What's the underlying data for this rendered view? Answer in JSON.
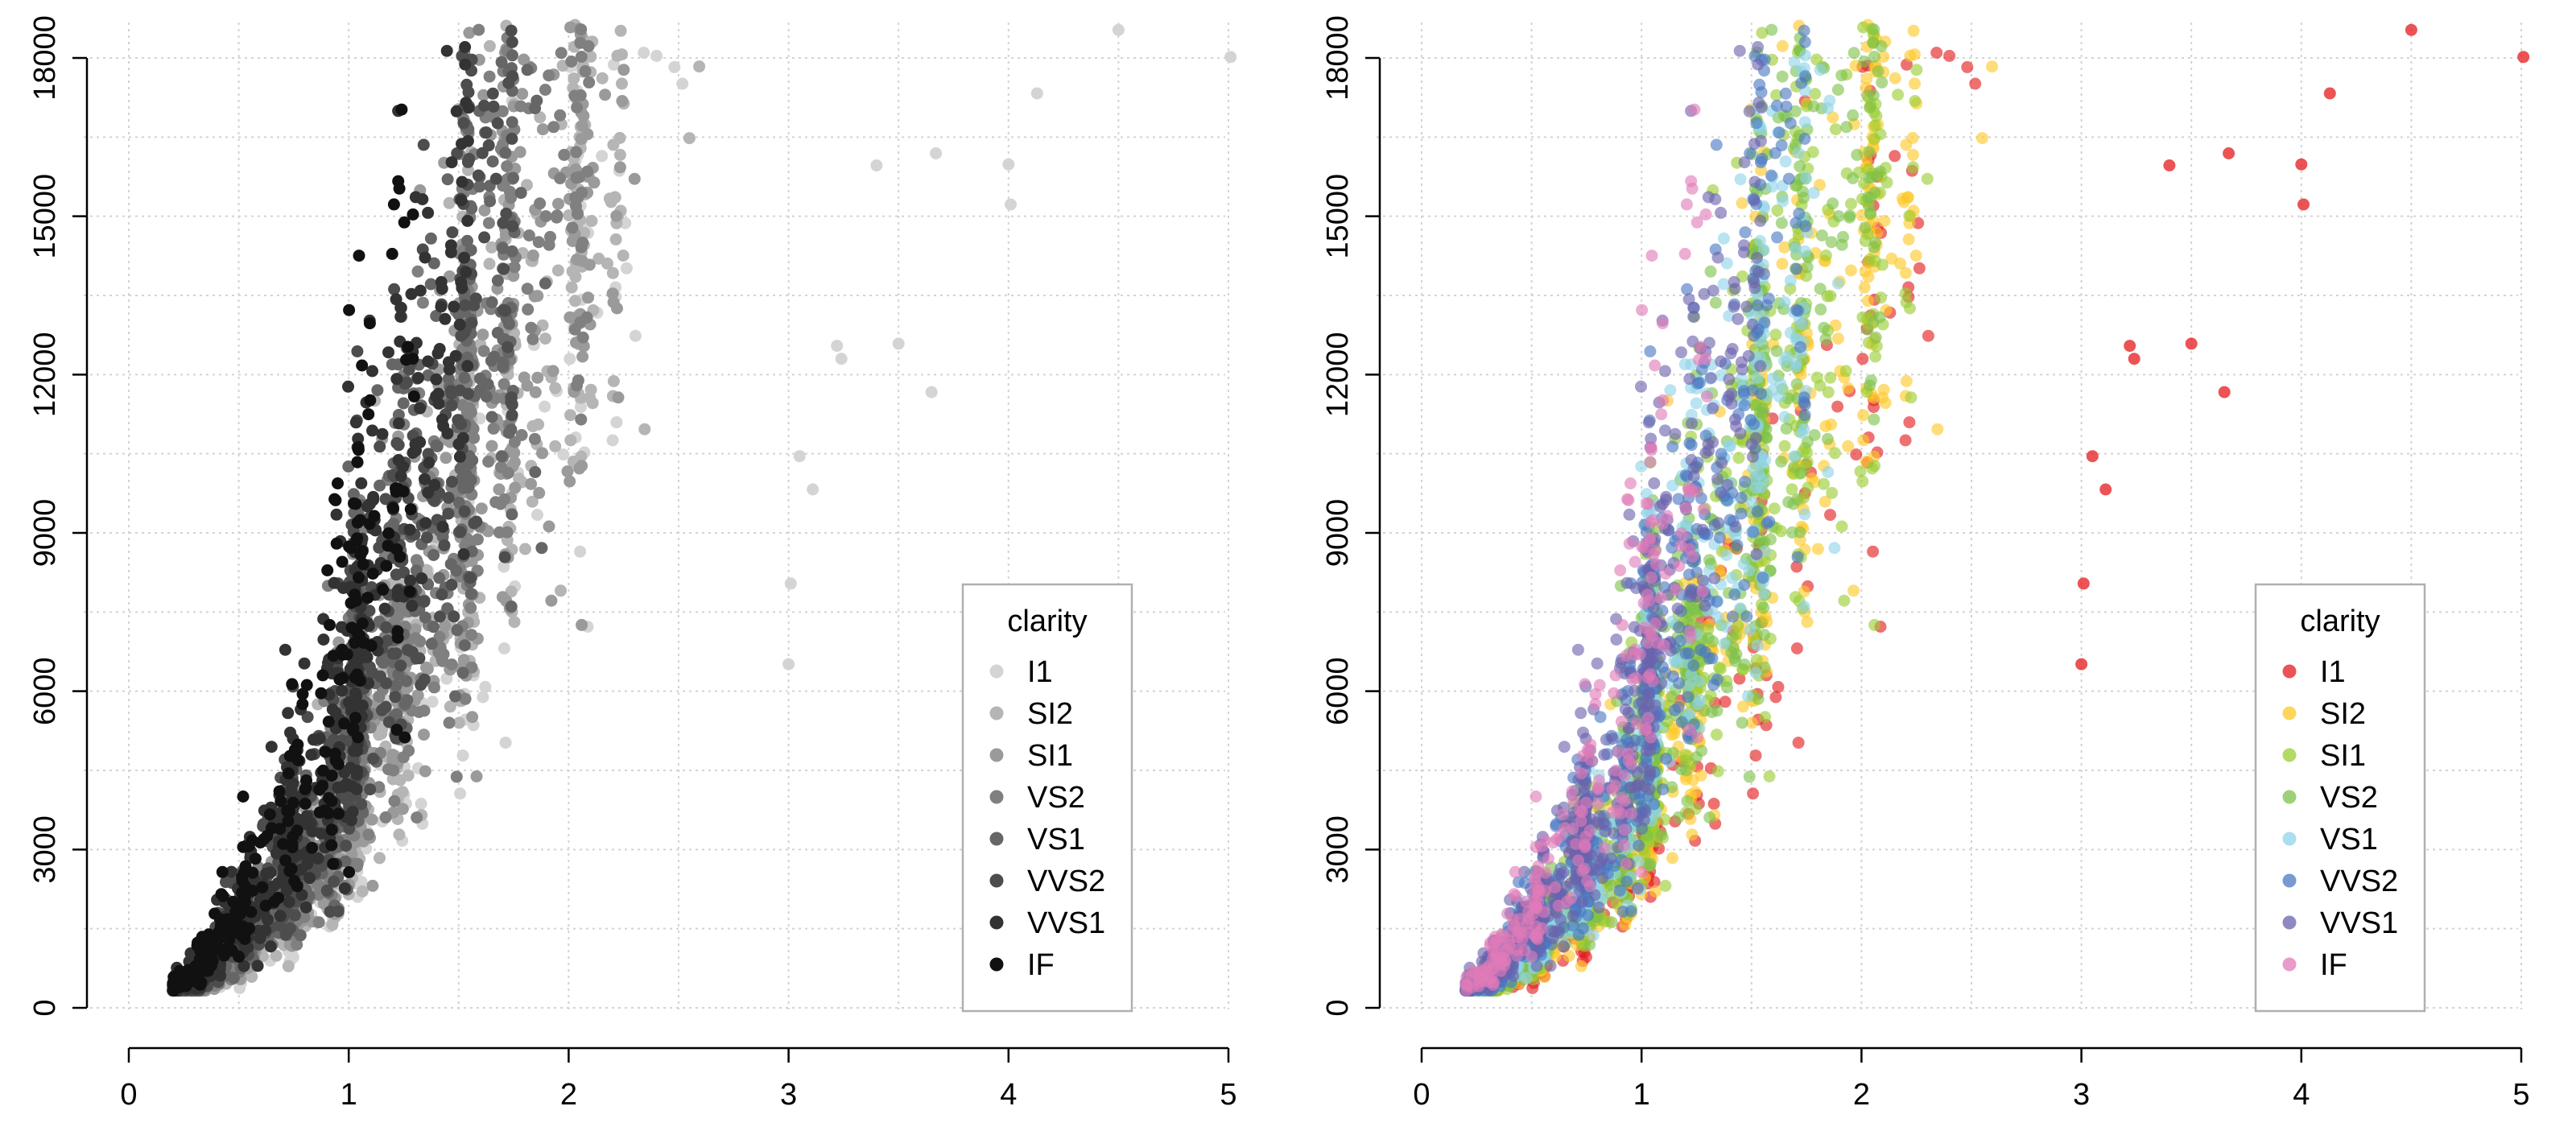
{
  "chart_data": [
    {
      "type": "scatter",
      "panel": "left",
      "palette_name": "greyscale",
      "title": "",
      "xlabel": "",
      "ylabel": "",
      "xlim": [
        0,
        5
      ],
      "ylim": [
        0,
        18000
      ],
      "x_ticks": [
        0,
        1,
        2,
        3,
        4,
        5
      ],
      "y_ticks": [
        0,
        3000,
        6000,
        9000,
        12000,
        15000,
        18000
      ],
      "x_tick_labels": [
        "0",
        "1",
        "2",
        "3",
        "4",
        "5"
      ],
      "y_tick_labels": [
        "0",
        "3000",
        "6000",
        "9000",
        "12000",
        "15000",
        "18000"
      ],
      "grid": true,
      "legend_title": "clarity",
      "legend_position": "bottom-right",
      "series": [
        {
          "name": "I1",
          "color": "#d4d4d4"
        },
        {
          "name": "SI2",
          "color": "#b5b5b5"
        },
        {
          "name": "SI1",
          "color": "#9a9a9a"
        },
        {
          "name": "VS2",
          "color": "#808080"
        },
        {
          "name": "VS1",
          "color": "#666666"
        },
        {
          "name": "VVS2",
          "color": "#4d4d4d"
        },
        {
          "name": "VVS1",
          "color": "#333333"
        },
        {
          "name": "IF",
          "color": "#111111"
        }
      ],
      "notable_points": [
        {
          "x": 5.01,
          "y": 18018,
          "series": "I1"
        },
        {
          "x": 4.5,
          "y": 18531,
          "series": "I1"
        },
        {
          "x": 4.13,
          "y": 17329,
          "series": "I1"
        },
        {
          "x": 4.01,
          "y": 15223,
          "series": "I1"
        },
        {
          "x": 4.0,
          "y": 15984,
          "series": "I1"
        },
        {
          "x": 3.67,
          "y": 16193,
          "series": "I1"
        },
        {
          "x": 3.4,
          "y": 15964,
          "series": "I1"
        },
        {
          "x": 3.65,
          "y": 11668,
          "series": "I1"
        },
        {
          "x": 3.5,
          "y": 12587,
          "series": "I1"
        },
        {
          "x": 3.24,
          "y": 12300,
          "series": "I1"
        },
        {
          "x": 3.22,
          "y": 12545,
          "series": "I1"
        },
        {
          "x": 3.11,
          "y": 9823,
          "series": "I1"
        },
        {
          "x": 3.05,
          "y": 10453,
          "series": "I1"
        },
        {
          "x": 3.01,
          "y": 8040,
          "series": "I1"
        },
        {
          "x": 3.0,
          "y": 6512,
          "series": "I1"
        }
      ]
    },
    {
      "type": "scatter",
      "panel": "right",
      "palette_name": "colour",
      "title": "",
      "xlabel": "",
      "ylabel": "",
      "xlim": [
        0,
        5
      ],
      "ylim": [
        0,
        18000
      ],
      "x_ticks": [
        0,
        1,
        2,
        3,
        4,
        5
      ],
      "y_ticks": [
        0,
        3000,
        6000,
        9000,
        12000,
        15000,
        18000
      ],
      "x_tick_labels": [
        "0",
        "1",
        "2",
        "3",
        "4",
        "5"
      ],
      "y_tick_labels": [
        "0",
        "3000",
        "6000",
        "9000",
        "12000",
        "15000",
        "18000"
      ],
      "grid": true,
      "legend_title": "clarity",
      "legend_position": "bottom-right",
      "series": [
        {
          "name": "I1",
          "color": "#e41a1c"
        },
        {
          "name": "SI2",
          "color": "#fdc827"
        },
        {
          "name": "SI1",
          "color": "#9acd32"
        },
        {
          "name": "VS2",
          "color": "#7cc24a"
        },
        {
          "name": "VS1",
          "color": "#8fd3e8"
        },
        {
          "name": "VVS2",
          "color": "#4a78c2"
        },
        {
          "name": "VVS1",
          "color": "#6a62ad"
        },
        {
          "name": "IF",
          "color": "#e07bb8"
        }
      ],
      "notable_points": [
        {
          "x": 5.01,
          "y": 18018,
          "series": "I1"
        },
        {
          "x": 4.5,
          "y": 18531,
          "series": "I1"
        },
        {
          "x": 4.13,
          "y": 17329,
          "series": "I1"
        },
        {
          "x": 4.01,
          "y": 15223,
          "series": "I1"
        },
        {
          "x": 4.0,
          "y": 15984,
          "series": "I1"
        },
        {
          "x": 3.67,
          "y": 16193,
          "series": "I1"
        },
        {
          "x": 3.4,
          "y": 15964,
          "series": "I1"
        },
        {
          "x": 3.65,
          "y": 11668,
          "series": "I1"
        },
        {
          "x": 3.5,
          "y": 12587,
          "series": "I1"
        },
        {
          "x": 3.24,
          "y": 12300,
          "series": "I1"
        },
        {
          "x": 3.22,
          "y": 12545,
          "series": "I1"
        },
        {
          "x": 3.11,
          "y": 9823,
          "series": "I1"
        },
        {
          "x": 3.05,
          "y": 10453,
          "series": "I1"
        },
        {
          "x": 3.01,
          "y": 8040,
          "series": "I1"
        },
        {
          "x": 3.0,
          "y": 6512,
          "series": "I1"
        }
      ]
    }
  ]
}
